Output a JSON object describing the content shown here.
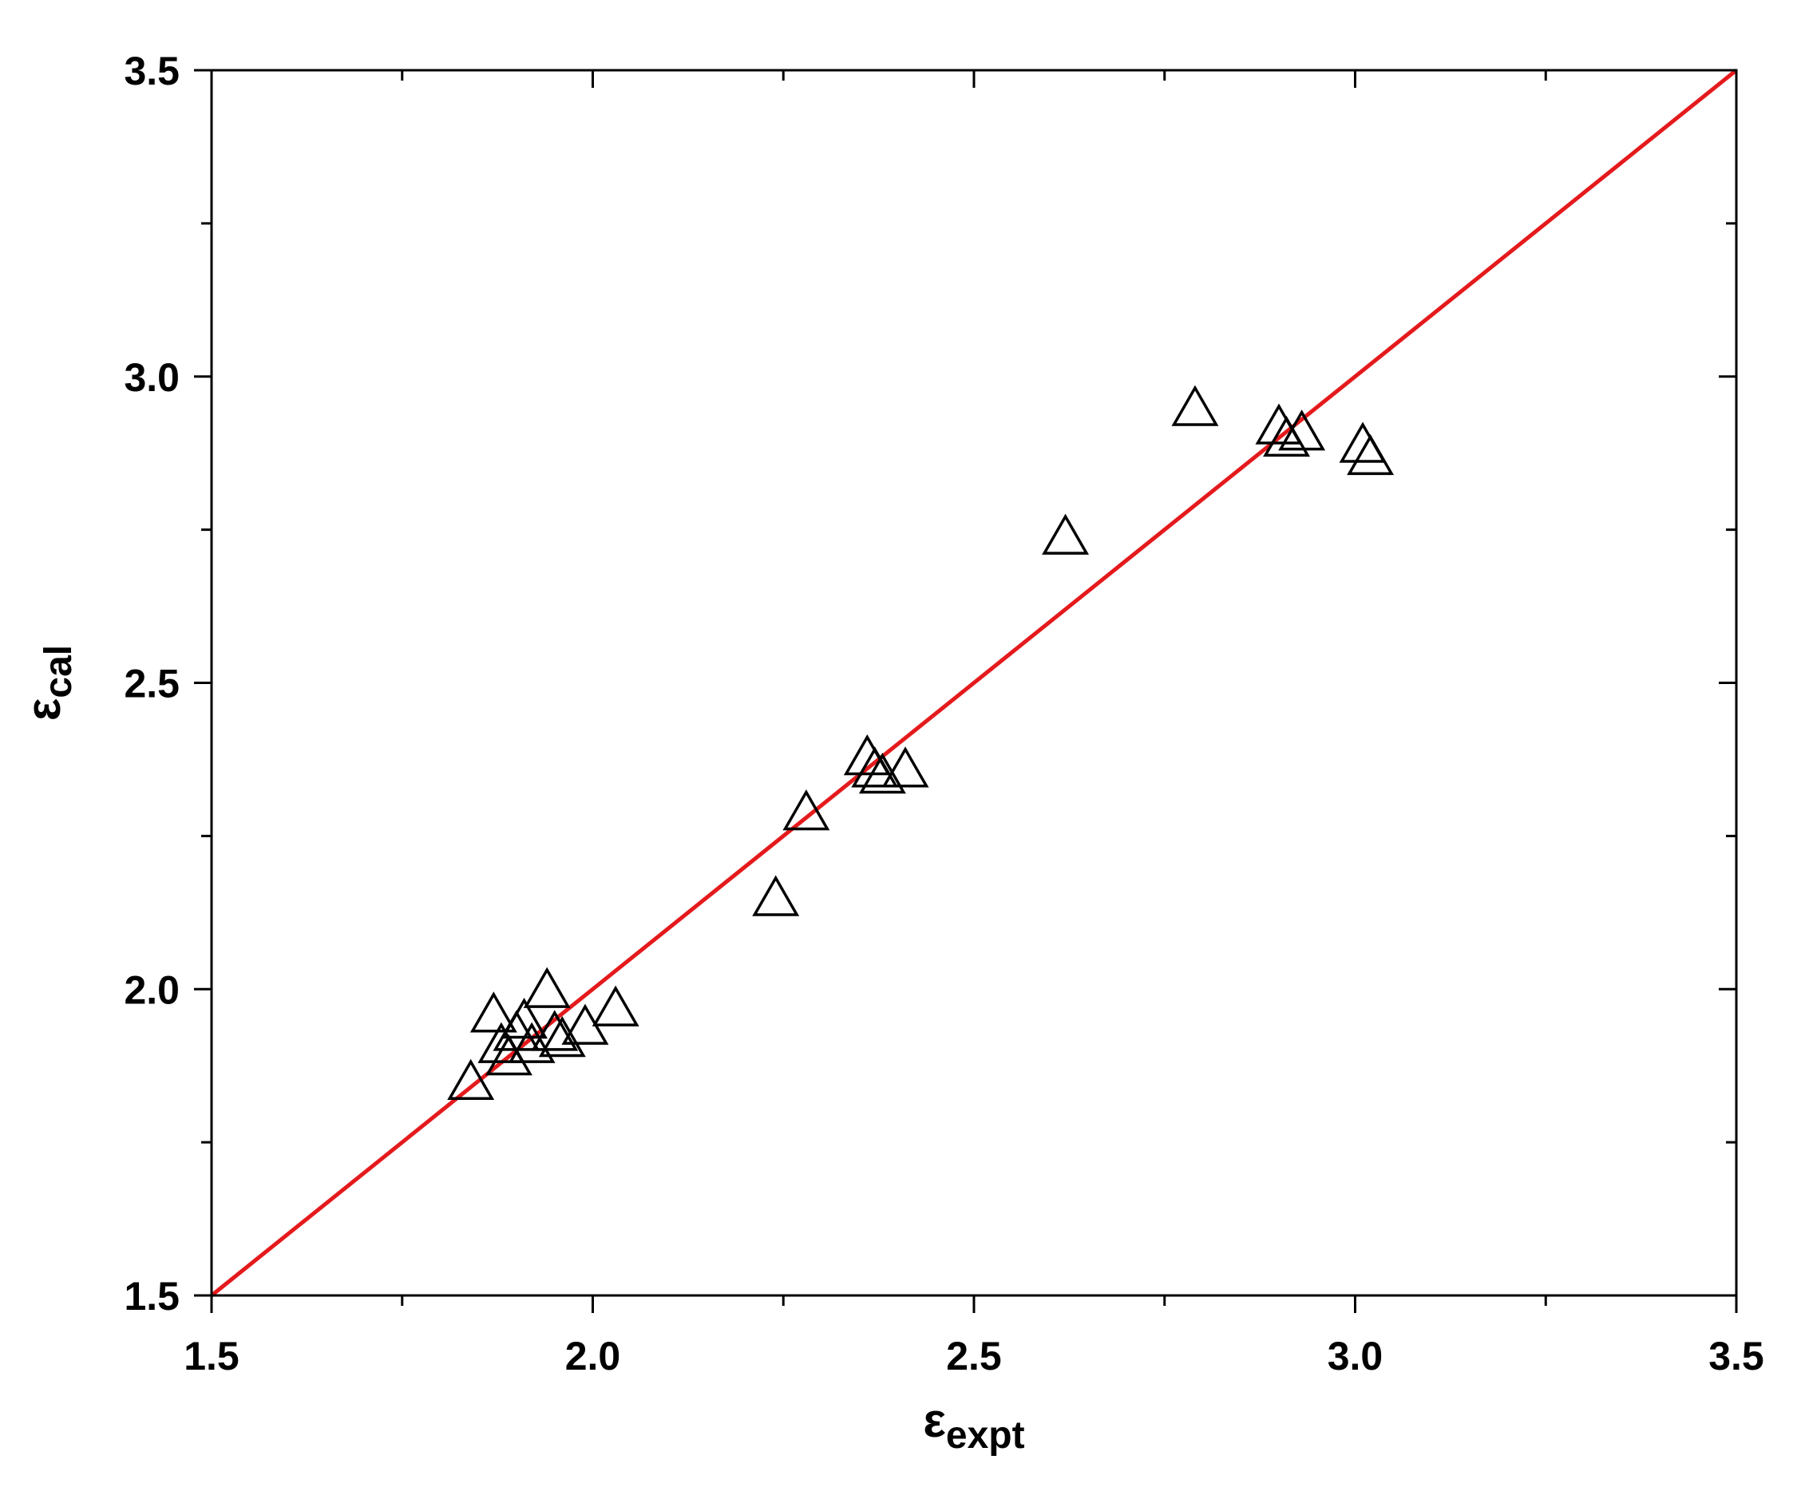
{
  "chart_data": {
    "type": "scatter",
    "xlabel": {
      "main": "ε",
      "sub": "expt"
    },
    "ylabel": {
      "main": "ε",
      "sub": "cal"
    },
    "xlim": [
      1.5,
      3.5
    ],
    "ylim": [
      1.5,
      3.5
    ],
    "x_major_ticks": [
      1.5,
      2.0,
      2.5,
      3.0,
      3.5
    ],
    "y_major_ticks": [
      1.5,
      2.0,
      2.5,
      3.0,
      3.5
    ],
    "x_tick_labels": [
      "1.5",
      "2.0",
      "2.5",
      "3.0",
      "3.5"
    ],
    "y_tick_labels": [
      "1.5",
      "2.0",
      "2.5",
      "3.0",
      "3.5"
    ],
    "x_minor_step": 0.25,
    "y_minor_step": 0.25,
    "grid": false,
    "marker": "open-triangle",
    "marker_color": "#000000",
    "line_color": "#e41a1c",
    "reference_line": {
      "x": [
        1.5,
        3.5
      ],
      "y": [
        1.5,
        3.5
      ]
    },
    "points": [
      {
        "x": 1.84,
        "y": 1.85
      },
      {
        "x": 1.87,
        "y": 1.96
      },
      {
        "x": 1.88,
        "y": 1.91
      },
      {
        "x": 1.89,
        "y": 1.89
      },
      {
        "x": 1.9,
        "y": 1.93
      },
      {
        "x": 1.91,
        "y": 1.95
      },
      {
        "x": 1.92,
        "y": 1.91
      },
      {
        "x": 1.94,
        "y": 2.0
      },
      {
        "x": 1.95,
        "y": 1.93
      },
      {
        "x": 1.96,
        "y": 1.92
      },
      {
        "x": 1.99,
        "y": 1.94
      },
      {
        "x": 2.03,
        "y": 1.97
      },
      {
        "x": 2.24,
        "y": 2.15
      },
      {
        "x": 2.28,
        "y": 2.29
      },
      {
        "x": 2.36,
        "y": 2.38
      },
      {
        "x": 2.37,
        "y": 2.36
      },
      {
        "x": 2.38,
        "y": 2.35
      },
      {
        "x": 2.41,
        "y": 2.36
      },
      {
        "x": 2.62,
        "y": 2.74
      },
      {
        "x": 2.79,
        "y": 2.95
      },
      {
        "x": 2.9,
        "y": 2.92
      },
      {
        "x": 2.91,
        "y": 2.9
      },
      {
        "x": 2.93,
        "y": 2.91
      },
      {
        "x": 3.01,
        "y": 2.89
      },
      {
        "x": 3.02,
        "y": 2.87
      }
    ]
  }
}
